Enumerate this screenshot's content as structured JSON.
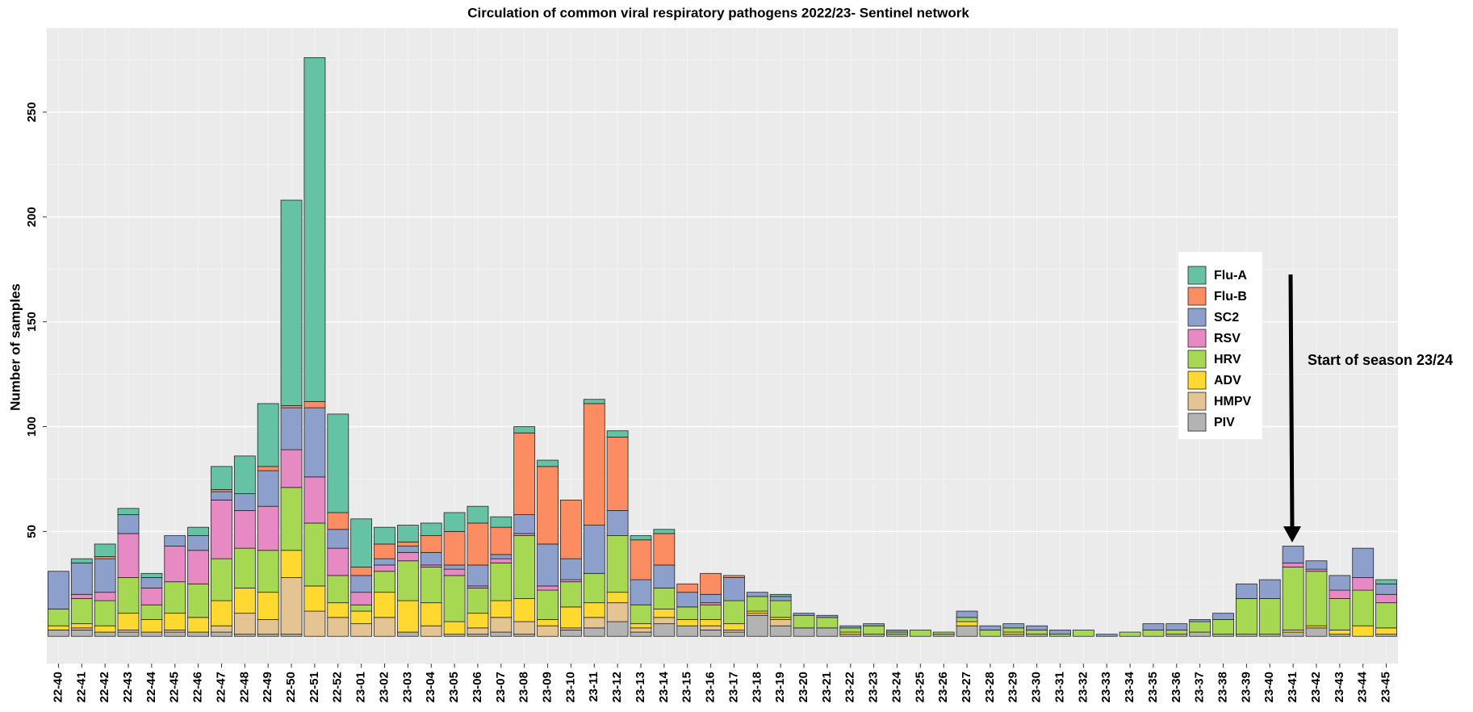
{
  "chart_data": {
    "type": "stacked-bar",
    "title": "Circulation of common viral respiratory  pathogens 2022/23- Sentinel network",
    "y_label": "Number of samples",
    "annotation": "Start of season 23/24",
    "categories": [
      "22-40",
      "22-41",
      "22-42",
      "22-43",
      "22-44",
      "22-45",
      "22-46",
      "22-47",
      "22-48",
      "22-49",
      "22-50",
      "22-51",
      "22-52",
      "23-01",
      "23-02",
      "23-03",
      "23-04",
      "23-05",
      "23-06",
      "23-07",
      "23-08",
      "23-09",
      "23-10",
      "23-11",
      "23-12",
      "23-13",
      "23-14",
      "23-15",
      "23-16",
      "23-17",
      "23-18",
      "23-19",
      "23-20",
      "23-21",
      "23-22",
      "23-23",
      "23-24",
      "23-25",
      "23-26",
      "23-27",
      "23-28",
      "23-29",
      "23-30",
      "23-31",
      "23-32",
      "23-33",
      "23-34",
      "23-35",
      "23-36",
      "23-37",
      "23-38",
      "23-39",
      "23-40",
      "23-41",
      "23-42",
      "23-43",
      "23-44",
      "23-45"
    ],
    "series": [
      {
        "name": "Flu-A",
        "color": "#66c2a5",
        "values": [
          0,
          2,
          6,
          3,
          2,
          0,
          4,
          11,
          18,
          30,
          98,
          164,
          47,
          23,
          8,
          8,
          6,
          9,
          8,
          5,
          3,
          3,
          0,
          2,
          3,
          2,
          2,
          0,
          0,
          0,
          0,
          1,
          0,
          0,
          0,
          0,
          0,
          0,
          0,
          0,
          0,
          0,
          0,
          0,
          0,
          0,
          0,
          0,
          0,
          0,
          0,
          0,
          0,
          0,
          0,
          0,
          0,
          2
        ]
      },
      {
        "name": "Flu-B",
        "color": "#fc8d62",
        "values": [
          0,
          0,
          1,
          0,
          0,
          0,
          0,
          1,
          0,
          2,
          1,
          3,
          8,
          4,
          7,
          2,
          8,
          16,
          20,
          13,
          39,
          37,
          28,
          58,
          35,
          19,
          15,
          4,
          10,
          1,
          0,
          0,
          0,
          0,
          0,
          0,
          0,
          0,
          0,
          0,
          0,
          0,
          0,
          0,
          0,
          0,
          0,
          0,
          0,
          0,
          0,
          0,
          0,
          0,
          0,
          0,
          0,
          0
        ]
      },
      {
        "name": "SC2",
        "color": "#8da0cb",
        "values": [
          18,
          15,
          16,
          9,
          5,
          5,
          7,
          4,
          8,
          17,
          20,
          33,
          9,
          8,
          3,
          3,
          6,
          2,
          10,
          2,
          9,
          20,
          10,
          23,
          12,
          12,
          11,
          7,
          4,
          11,
          2,
          2,
          1,
          1,
          1,
          1,
          1,
          0,
          0,
          3,
          2,
          2,
          2,
          2,
          0,
          1,
          0,
          3,
          3,
          1,
          3,
          7,
          9,
          8,
          4,
          7,
          14,
          5
        ]
      },
      {
        "name": "RSV",
        "color": "#e78ac3",
        "values": [
          0,
          2,
          4,
          21,
          8,
          17,
          16,
          28,
          18,
          21,
          18,
          22,
          13,
          6,
          3,
          4,
          1,
          3,
          1,
          2,
          1,
          2,
          1,
          0,
          0,
          0,
          0,
          0,
          1,
          0,
          0,
          0,
          0,
          0,
          0,
          0,
          0,
          0,
          0,
          0,
          0,
          0,
          0,
          0,
          0,
          0,
          0,
          0,
          0,
          0,
          0,
          0,
          0,
          2,
          1,
          4,
          6,
          4
        ]
      },
      {
        "name": "HRV",
        "color": "#a6d854",
        "values": [
          8,
          12,
          12,
          17,
          7,
          15,
          16,
          20,
          19,
          20,
          30,
          30,
          13,
          3,
          10,
          19,
          17,
          22,
          12,
          18,
          30,
          14,
          12,
          14,
          27,
          9,
          10,
          6,
          7,
          11,
          7,
          8,
          6,
          5,
          2,
          4,
          1,
          3,
          1,
          2,
          3,
          2,
          2,
          1,
          3,
          0,
          2,
          3,
          2,
          5,
          7,
          17,
          17,
          30,
          26,
          15,
          17,
          12
        ]
      },
      {
        "name": "ADV",
        "color": "#ffd92f",
        "values": [
          2,
          2,
          3,
          8,
          6,
          8,
          7,
          12,
          12,
          13,
          13,
          12,
          7,
          6,
          12,
          15,
          11,
          6,
          7,
          8,
          11,
          3,
          10,
          7,
          5,
          2,
          4,
          3,
          3,
          3,
          1,
          1,
          0,
          0,
          1,
          0,
          0,
          0,
          0,
          2,
          0,
          1,
          0,
          0,
          0,
          0,
          0,
          0,
          0,
          0,
          0,
          0,
          0,
          1,
          1,
          2,
          5,
          3
        ]
      },
      {
        "name": "HMPV",
        "color": "#e5c494",
        "values": [
          0,
          1,
          0,
          1,
          0,
          1,
          0,
          3,
          10,
          7,
          27,
          12,
          9,
          6,
          9,
          0,
          5,
          0,
          3,
          7,
          6,
          5,
          1,
          5,
          9,
          2,
          3,
          0,
          2,
          1,
          1,
          3,
          0,
          0,
          0,
          0,
          0,
          0,
          0,
          0,
          0,
          0,
          0,
          0,
          0,
          0,
          0,
          0,
          0,
          0,
          0,
          0,
          0,
          0,
          0,
          0,
          0,
          0
        ]
      },
      {
        "name": "PIV",
        "color": "#b3b3b3",
        "values": [
          3,
          3,
          2,
          2,
          2,
          2,
          2,
          2,
          1,
          1,
          1,
          0,
          0,
          0,
          0,
          2,
          0,
          1,
          1,
          2,
          1,
          0,
          3,
          4,
          7,
          2,
          6,
          5,
          3,
          2,
          10,
          5,
          4,
          4,
          1,
          1,
          1,
          0,
          1,
          5,
          0,
          1,
          1,
          0,
          0,
          0,
          0,
          0,
          1,
          2,
          1,
          1,
          1,
          2,
          4,
          1,
          0,
          1
        ]
      }
    ],
    "ylim": [
      -13,
      290
    ],
    "yticks": [
      50,
      100,
      150,
      200,
      250
    ],
    "grid": true
  }
}
